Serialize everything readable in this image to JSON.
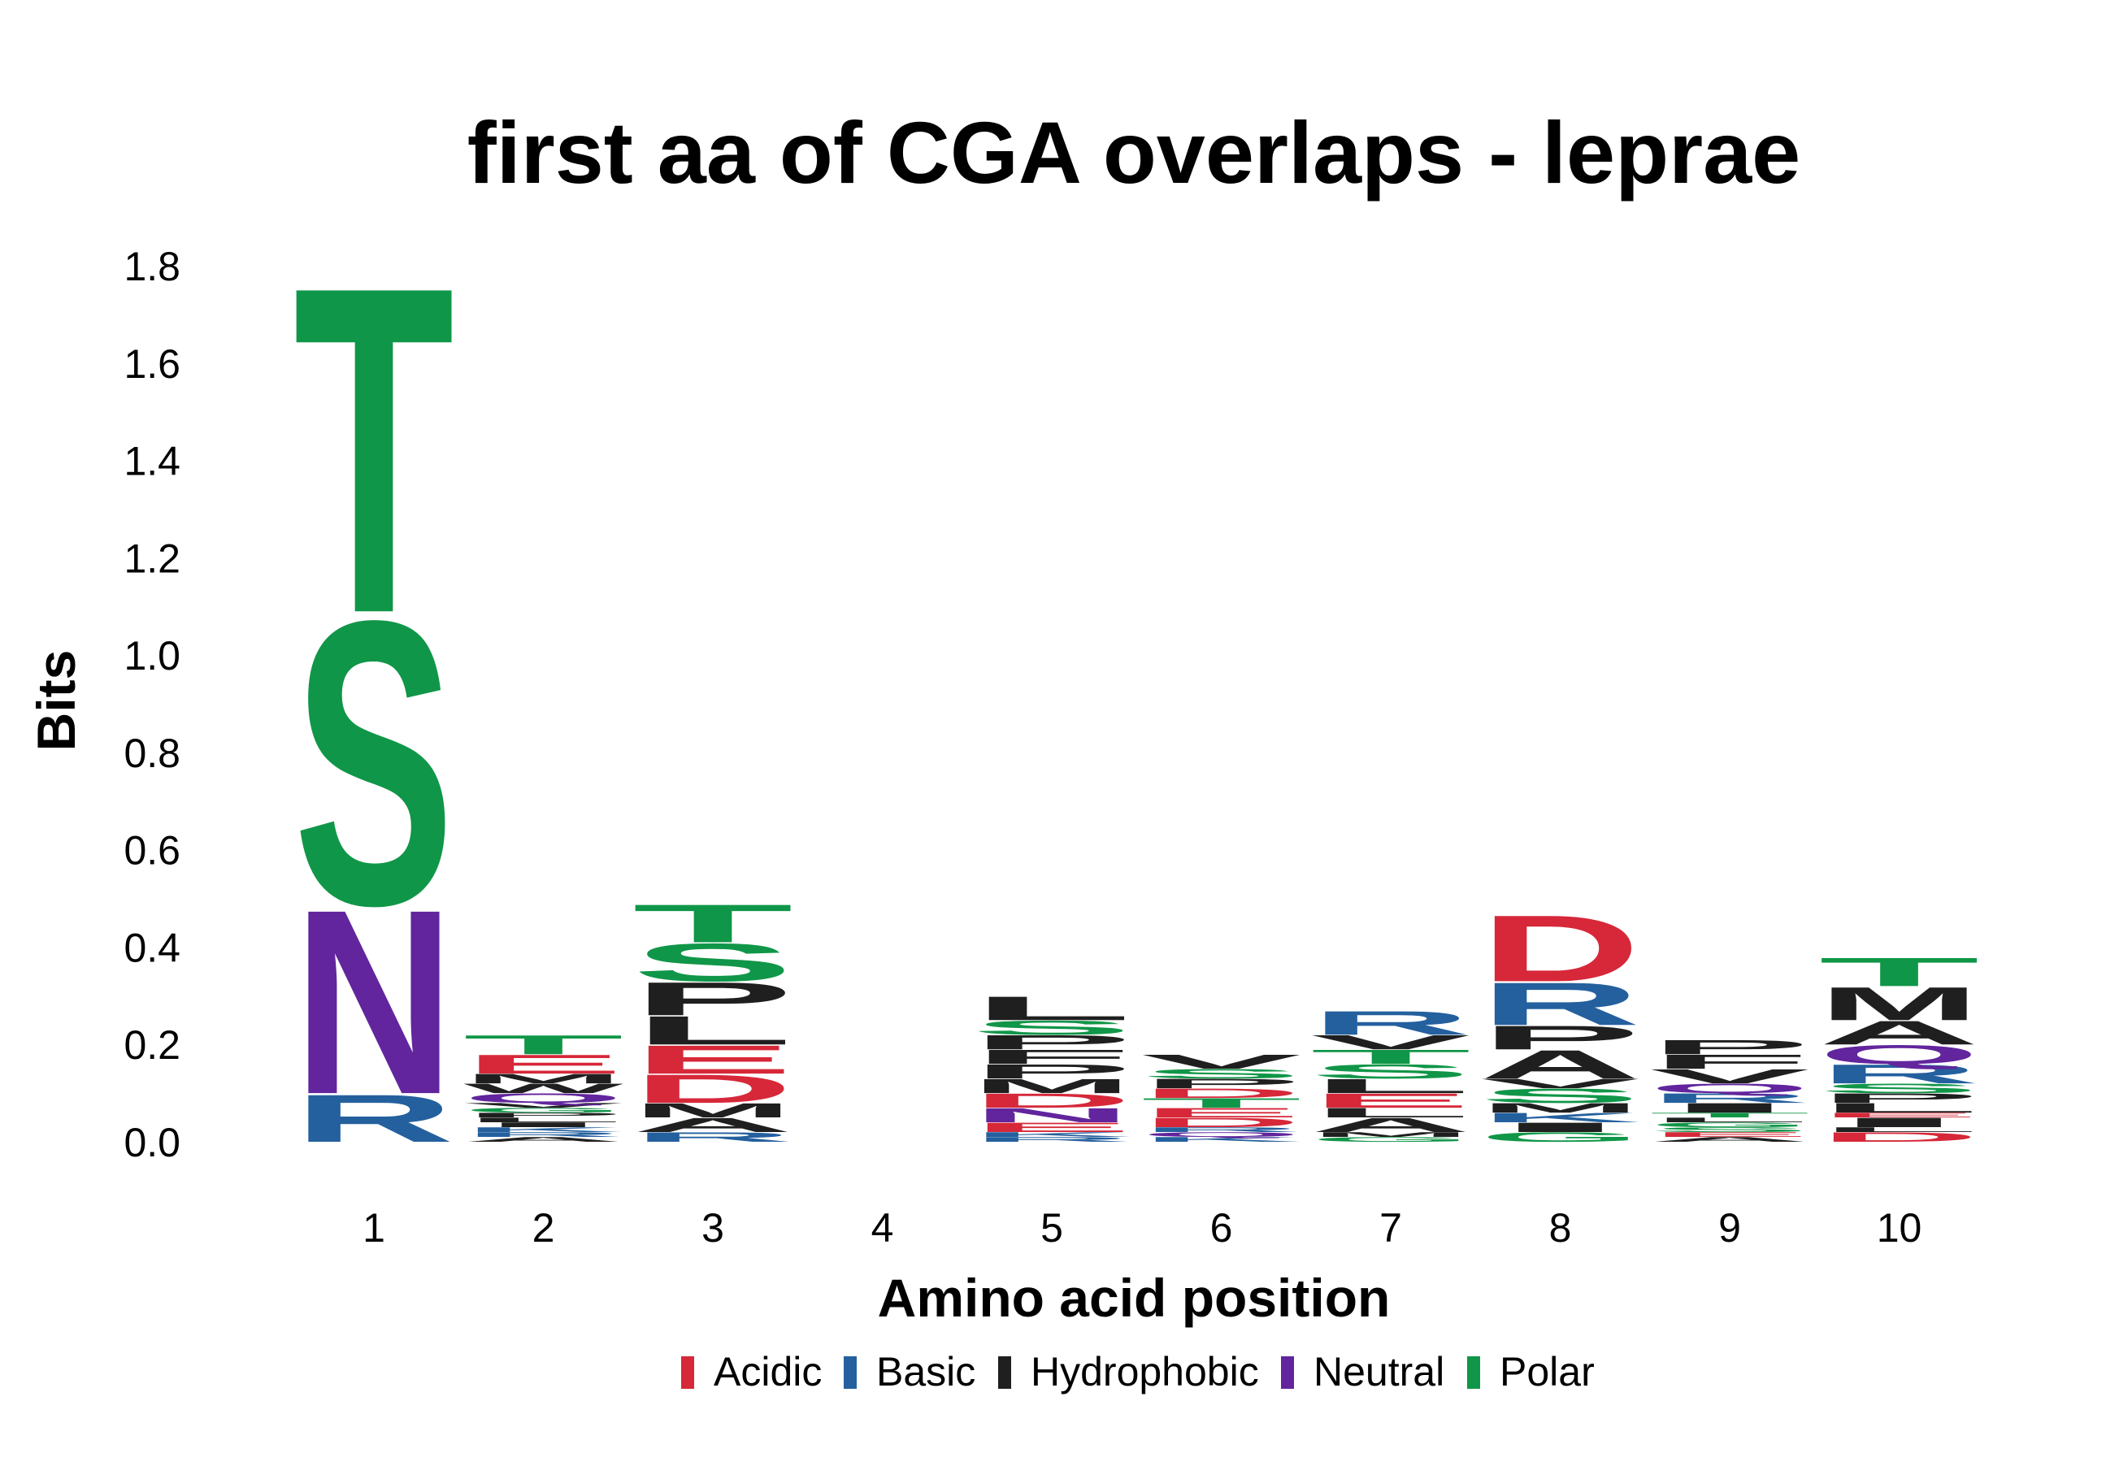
{
  "chart_data": {
    "type": "sequence-logo",
    "title": "first aa of CGA overlaps - leprae",
    "xlabel": "Amino acid position",
    "ylabel": "Bits",
    "ylim": [
      0,
      1.8
    ],
    "yticks": [
      "0.0",
      "0.2",
      "0.4",
      "0.6",
      "0.8",
      "1.0",
      "1.2",
      "1.4",
      "1.6",
      "1.8"
    ],
    "xticks": [
      "1",
      "2",
      "3",
      "4",
      "5",
      "6",
      "7",
      "8",
      "9",
      "10"
    ],
    "legend": [
      {
        "name": "Acidic",
        "color": "#d62839"
      },
      {
        "name": "Basic",
        "color": "#24609e"
      },
      {
        "name": "Hydrophobic",
        "color": "#1f1f1f"
      },
      {
        "name": "Neutral",
        "color": "#62259d"
      },
      {
        "name": "Polar",
        "color": "#109648"
      }
    ],
    "positions": [
      {
        "position": "1",
        "letters": [
          {
            "aa": "R",
            "class": "Basic",
            "bits": 0.1
          },
          {
            "aa": "N",
            "class": "Neutral",
            "bits": 0.39
          },
          {
            "aa": "S",
            "class": "Polar",
            "bits": 0.6
          },
          {
            "aa": "T",
            "class": "Polar",
            "bits": 0.69
          }
        ]
      },
      {
        "position": "2",
        "letters": [
          {
            "aa": "A",
            "class": "Hydrophobic",
            "bits": 0.01
          },
          {
            "aa": "R",
            "class": "Basic",
            "bits": 0.01
          },
          {
            "aa": "K",
            "class": "Basic",
            "bits": 0.01
          },
          {
            "aa": "I",
            "class": "Hydrophobic",
            "bits": 0.01
          },
          {
            "aa": "L",
            "class": "Hydrophobic",
            "bits": 0.01
          },
          {
            "aa": "P",
            "class": "Hydrophobic",
            "bits": 0.01
          },
          {
            "aa": "G",
            "class": "Polar",
            "bits": 0.01
          },
          {
            "aa": "V",
            "class": "Hydrophobic",
            "bits": 0.01
          },
          {
            "aa": "Q",
            "class": "Neutral",
            "bits": 0.02
          },
          {
            "aa": "W",
            "class": "Hydrophobic",
            "bits": 0.02
          },
          {
            "aa": "M",
            "class": "Hydrophobic",
            "bits": 0.02
          },
          {
            "aa": "E",
            "class": "Acidic",
            "bits": 0.04
          },
          {
            "aa": "T",
            "class": "Polar",
            "bits": 0.04
          }
        ]
      },
      {
        "position": "3",
        "letters": [
          {
            "aa": "R",
            "class": "Basic",
            "bits": 0.02
          },
          {
            "aa": "A",
            "class": "Hydrophobic",
            "bits": 0.03
          },
          {
            "aa": "M",
            "class": "Hydrophobic",
            "bits": 0.03
          },
          {
            "aa": "D",
            "class": "Acidic",
            "bits": 0.06
          },
          {
            "aa": "E",
            "class": "Acidic",
            "bits": 0.06
          },
          {
            "aa": "L",
            "class": "Hydrophobic",
            "bits": 0.06
          },
          {
            "aa": "P",
            "class": "Hydrophobic",
            "bits": 0.07
          },
          {
            "aa": "S",
            "class": "Polar",
            "bits": 0.08
          },
          {
            "aa": "T",
            "class": "Polar",
            "bits": 0.08
          }
        ]
      },
      {
        "position": "4",
        "letters": []
      },
      {
        "position": "5",
        "letters": [
          {
            "aa": "R",
            "class": "Basic",
            "bits": 0.01
          },
          {
            "aa": "K",
            "class": "Basic",
            "bits": 0.01
          },
          {
            "aa": "E",
            "class": "Acidic",
            "bits": 0.02
          },
          {
            "aa": "N",
            "class": "Neutral",
            "bits": 0.03
          },
          {
            "aa": "D",
            "class": "Acidic",
            "bits": 0.03
          },
          {
            "aa": "M",
            "class": "Hydrophobic",
            "bits": 0.03
          },
          {
            "aa": "P",
            "class": "Hydrophobic",
            "bits": 0.03
          },
          {
            "aa": "F",
            "class": "Hydrophobic",
            "bits": 0.03
          },
          {
            "aa": "P",
            "class": "Hydrophobic",
            "bits": 0.03
          },
          {
            "aa": "S",
            "class": "Polar",
            "bits": 0.03
          },
          {
            "aa": "L",
            "class": "Hydrophobic",
            "bits": 0.05
          }
        ]
      },
      {
        "position": "6",
        "letters": [
          {
            "aa": "K",
            "class": "Basic",
            "bits": 0.01
          },
          {
            "aa": "Q",
            "class": "Neutral",
            "bits": 0.01
          },
          {
            "aa": "R",
            "class": "Basic",
            "bits": 0.01
          },
          {
            "aa": "D",
            "class": "Acidic",
            "bits": 0.02
          },
          {
            "aa": "E",
            "class": "Acidic",
            "bits": 0.02
          },
          {
            "aa": "T",
            "class": "Polar",
            "bits": 0.02
          },
          {
            "aa": "D",
            "class": "Acidic",
            "bits": 0.02
          },
          {
            "aa": "P",
            "class": "Hydrophobic",
            "bits": 0.02
          },
          {
            "aa": "S",
            "class": "Polar",
            "bits": 0.02
          },
          {
            "aa": "V",
            "class": "Hydrophobic",
            "bits": 0.03
          }
        ]
      },
      {
        "position": "7",
        "letters": [
          {
            "aa": "G",
            "class": "Polar",
            "bits": 0.01
          },
          {
            "aa": "M",
            "class": "Hydrophobic",
            "bits": 0.01
          },
          {
            "aa": "A",
            "class": "Hydrophobic",
            "bits": 0.03
          },
          {
            "aa": "L",
            "class": "Hydrophobic",
            "bits": 0.02
          },
          {
            "aa": "E",
            "class": "Acidic",
            "bits": 0.03
          },
          {
            "aa": "L",
            "class": "Hydrophobic",
            "bits": 0.03
          },
          {
            "aa": "S",
            "class": "Polar",
            "bits": 0.03
          },
          {
            "aa": "T",
            "class": "Polar",
            "bits": 0.03
          },
          {
            "aa": "V",
            "class": "Hydrophobic",
            "bits": 0.03
          },
          {
            "aa": "R",
            "class": "Basic",
            "bits": 0.05
          }
        ]
      },
      {
        "position": "8",
        "letters": [
          {
            "aa": "G",
            "class": "Polar",
            "bits": 0.02
          },
          {
            "aa": "I",
            "class": "Hydrophobic",
            "bits": 0.02
          },
          {
            "aa": "K",
            "class": "Basic",
            "bits": 0.02
          },
          {
            "aa": "M",
            "class": "Hydrophobic",
            "bits": 0.02
          },
          {
            "aa": "S",
            "class": "Polar",
            "bits": 0.03
          },
          {
            "aa": "V",
            "class": "Hydrophobic",
            "bits": 0.02
          },
          {
            "aa": "A",
            "class": "Hydrophobic",
            "bits": 0.06
          },
          {
            "aa": "P",
            "class": "Hydrophobic",
            "bits": 0.05
          },
          {
            "aa": "R",
            "class": "Basic",
            "bits": 0.09
          },
          {
            "aa": "D",
            "class": "Acidic",
            "bits": 0.14
          }
        ]
      },
      {
        "position": "9",
        "letters": [
          {
            "aa": "A",
            "class": "Hydrophobic",
            "bits": 0.01
          },
          {
            "aa": "E",
            "class": "Acidic",
            "bits": 0.01
          },
          {
            "aa": "S",
            "class": "Polar",
            "bits": 0.01
          },
          {
            "aa": "G",
            "class": "Polar",
            "bits": 0.01
          },
          {
            "aa": "L",
            "class": "Hydrophobic",
            "bits": 0.01
          },
          {
            "aa": "T",
            "class": "Polar",
            "bits": 0.01
          },
          {
            "aa": "I",
            "class": "Hydrophobic",
            "bits": 0.02
          },
          {
            "aa": "R",
            "class": "Basic",
            "bits": 0.02
          },
          {
            "aa": "Q",
            "class": "Neutral",
            "bits": 0.02
          },
          {
            "aa": "V",
            "class": "Hydrophobic",
            "bits": 0.03
          },
          {
            "aa": "F",
            "class": "Hydrophobic",
            "bits": 0.03
          },
          {
            "aa": "P",
            "class": "Hydrophobic",
            "bits": 0.03
          }
        ]
      },
      {
        "position": "10",
        "letters": [
          {
            "aa": "D",
            "class": "Acidic",
            "bits": 0.02
          },
          {
            "aa": "L",
            "class": "Hydrophobic",
            "bits": 0.01
          },
          {
            "aa": "I",
            "class": "Hydrophobic",
            "bits": 0.02
          },
          {
            "aa": "E",
            "class": "Acidic",
            "bits": 0.01
          },
          {
            "aa": "L",
            "class": "Hydrophobic",
            "bits": 0.02
          },
          {
            "aa": "P",
            "class": "Hydrophobic",
            "bits": 0.02
          },
          {
            "aa": "S",
            "class": "Polar",
            "bits": 0.02
          },
          {
            "aa": "R",
            "class": "Basic",
            "bits": 0.04
          },
          {
            "aa": "Q",
            "class": "Neutral",
            "bits": 0.04
          },
          {
            "aa": "A",
            "class": "Hydrophobic",
            "bits": 0.05
          },
          {
            "aa": "M",
            "class": "Hydrophobic",
            "bits": 0.07
          },
          {
            "aa": "T",
            "class": "Polar",
            "bits": 0.06
          }
        ]
      }
    ]
  }
}
